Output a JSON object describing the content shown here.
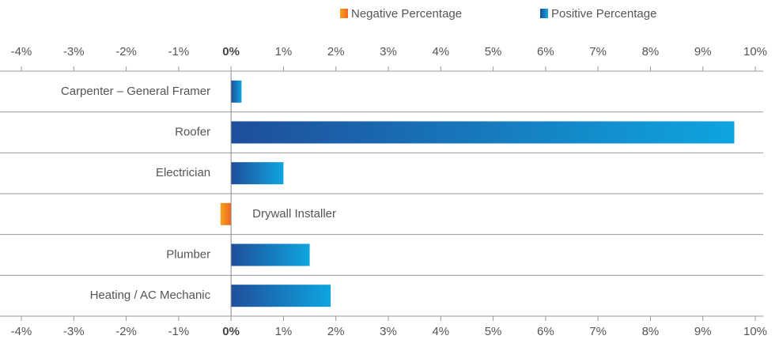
{
  "chart_data": {
    "type": "diverging-bar",
    "categories": [
      "Carpenter – General Framer",
      "Roofer",
      "Electrician",
      "Drywall Installer",
      "Plumber",
      "Heating / AC Mechanic"
    ],
    "values": [
      0.2,
      9.6,
      1.0,
      -0.2,
      1.5,
      1.9
    ],
    "legend": [
      {
        "name": "Negative Percentage",
        "color": [
          "#f7a21b",
          "#f26522"
        ]
      },
      {
        "name": "Positive Percentage",
        "color": [
          "#1f4e9a",
          "#0ea5e0"
        ]
      }
    ],
    "xlim": [
      -4,
      10
    ],
    "xticks": [
      {
        "value": -4,
        "label": "-4%"
      },
      {
        "value": -3,
        "label": "-3%"
      },
      {
        "value": -2,
        "label": "-2%"
      },
      {
        "value": -1,
        "label": "-1%"
      },
      {
        "value": 0,
        "label": "0%"
      },
      {
        "value": 1,
        "label": "1%"
      },
      {
        "value": 2,
        "label": "2%"
      },
      {
        "value": 3,
        "label": "3%"
      },
      {
        "value": 4,
        "label": "4%"
      },
      {
        "value": 5,
        "label": "5%"
      },
      {
        "value": 6,
        "label": "6%"
      },
      {
        "value": 7,
        "label": "7%"
      },
      {
        "value": 8,
        "label": "8%"
      },
      {
        "value": 9,
        "label": "9%"
      },
      {
        "value": 10,
        "label": "10%"
      }
    ]
  }
}
